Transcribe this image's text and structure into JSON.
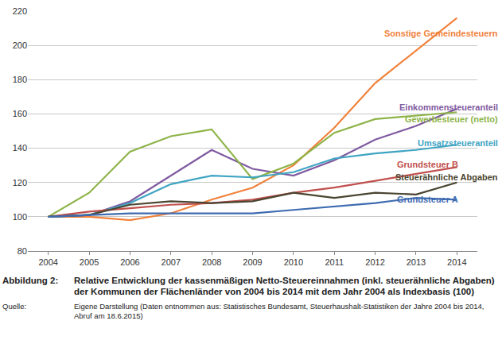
{
  "chart_data": {
    "type": "line",
    "x": [
      2004,
      2005,
      2006,
      2007,
      2008,
      2009,
      2010,
      2011,
      2012,
      2013,
      2014
    ],
    "xlim": [
      2003.5,
      2014.5
    ],
    "xticks": [
      2004,
      2005,
      2006,
      2007,
      2008,
      2009,
      2010,
      2011,
      2012,
      2013,
      2014
    ],
    "ylim": [
      80,
      220
    ],
    "yticks": [
      80,
      100,
      120,
      140,
      160,
      180,
      200,
      220
    ],
    "grid": true,
    "series": [
      {
        "name": "Sonstige Gemeindesteuern",
        "color": "#F0823C",
        "values": [
          100,
          100,
          98,
          102,
          110,
          117,
          130,
          152,
          178,
          197,
          216
        ]
      },
      {
        "name": "Einkommensteueranteil",
        "color": "#7F5AA0",
        "values": [
          100,
          101,
          109,
          124,
          139,
          128,
          124,
          133,
          145,
          153,
          163
        ]
      },
      {
        "name": "Gewerbesteuer (netto)",
        "color": "#8EB44A",
        "values": [
          100,
          114,
          138,
          147,
          151,
          122,
          131,
          149,
          157,
          159,
          161
        ]
      },
      {
        "name": "Umsatzsteueranteil",
        "color": "#3FA4C2",
        "values": [
          100,
          101,
          108,
          119,
          124,
          123,
          126,
          134,
          137,
          139,
          142
        ]
      },
      {
        "name": "Grundsteuer B",
        "color": "#C0504D",
        "values": [
          100,
          103,
          105,
          107,
          108,
          110,
          114,
          117,
          121,
          125,
          129
        ]
      },
      {
        "name": "Steuerähnliche Abgaben",
        "color": "#4A4530",
        "values": [
          100,
          101,
          107,
          109,
          108,
          109,
          114,
          111,
          114,
          113,
          120
        ]
      },
      {
        "name": "Grundsteuer A",
        "color": "#3E6BB0",
        "values": [
          100,
          101,
          102,
          102,
          102,
          102,
          104,
          106,
          108,
          111,
          110
        ]
      }
    ],
    "caption": {
      "label": "Abbildung 2:",
      "text": "Relative Entwicklung der kassenmäßigen Netto-Steuereinnahmen (inkl. steuerähnliche Abgaben) der Kommunen der Flächenländer von 2004 bis 2014 mit dem Jahr 2004 als Indexbasis (100)"
    },
    "source": {
      "label": "Quelle:",
      "text": "Eigene Darstellung (Daten entnommen aus: Statistisches Bundesamt, Steuerhaushalt-Statistiken der Jahre 2004 bis 2014, Abruf am 18.6.2015)"
    }
  }
}
